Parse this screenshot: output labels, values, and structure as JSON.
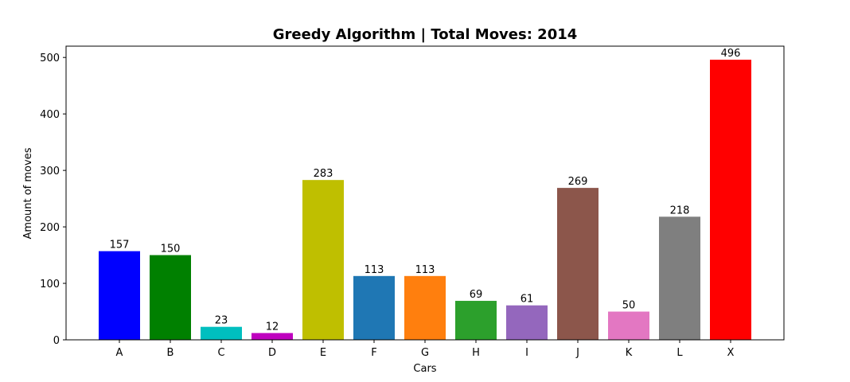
{
  "chart_data": {
    "type": "bar",
    "title": "Greedy Algorithm | Total Moves: 2014",
    "xlabel": "Cars",
    "ylabel": "Amount of moves",
    "categories": [
      "A",
      "B",
      "C",
      "D",
      "E",
      "F",
      "G",
      "H",
      "I",
      "J",
      "K",
      "L",
      "X"
    ],
    "values": [
      157,
      150,
      23,
      12,
      283,
      113,
      113,
      69,
      61,
      269,
      50,
      218,
      496
    ],
    "colors": [
      "#0000ff",
      "#008000",
      "#00bfbf",
      "#bf00bf",
      "#bfbf00",
      "#1f77b4",
      "#ff7f0e",
      "#2ca02c",
      "#9467bd",
      "#8c564b",
      "#e377c2",
      "#7f7f7f",
      "#ff0000"
    ],
    "ylim": [
      0,
      520
    ],
    "yticks": [
      0,
      100,
      200,
      300,
      400,
      500
    ],
    "grid": false,
    "data_labels": true
  }
}
